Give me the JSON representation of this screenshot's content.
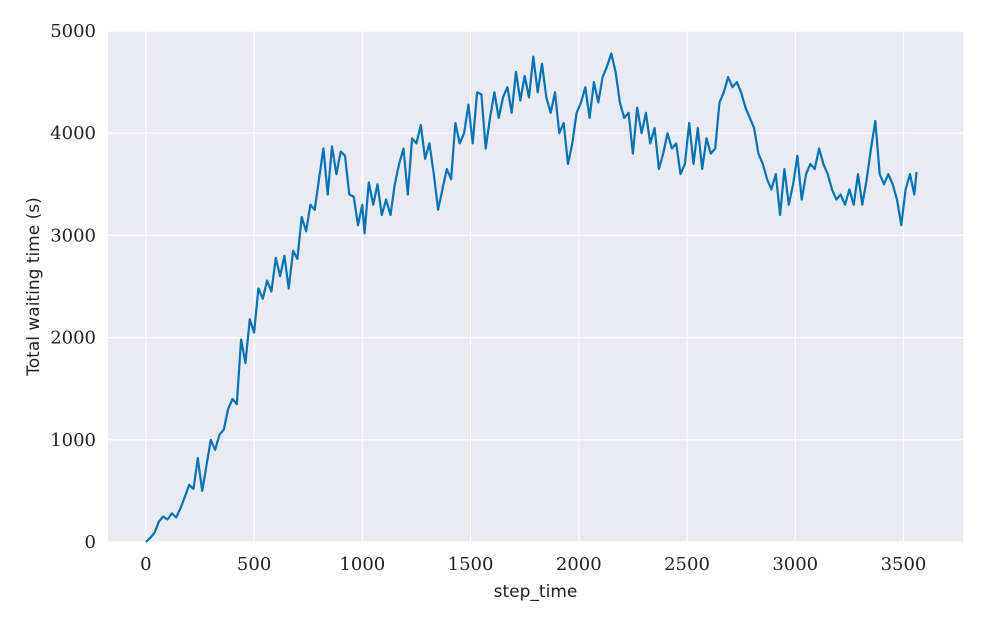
{
  "chart_data": {
    "type": "line",
    "title": "",
    "xlabel": "step_time",
    "ylabel": "Total waiting time (s)",
    "xlim": [
      -175,
      3775
    ],
    "ylim": [
      0,
      5000
    ],
    "x_ticks": [
      0,
      500,
      1000,
      1500,
      2000,
      2500,
      3000,
      3500
    ],
    "y_ticks": [
      0,
      1000,
      2000,
      3000,
      4000,
      5000
    ],
    "x_tick_labels": [
      "0",
      "500",
      "1000",
      "1500",
      "2000",
      "2500",
      "3000",
      "3500"
    ],
    "y_tick_labels": [
      "0",
      "1000",
      "2000",
      "3000",
      "4000",
      "5000"
    ],
    "grid": true,
    "style": "seaborn-darkgrid",
    "colors": {
      "background": "#eaeaf2",
      "grid": "#ffffff",
      "series": "#0173b2"
    },
    "series": [
      {
        "points": [
          [
            0,
            0
          ],
          [
            20,
            40
          ],
          [
            40,
            90
          ],
          [
            60,
            200
          ],
          [
            80,
            250
          ],
          [
            100,
            220
          ],
          [
            120,
            280
          ],
          [
            140,
            240
          ],
          [
            160,
            330
          ],
          [
            180,
            440
          ],
          [
            200,
            560
          ],
          [
            220,
            520
          ],
          [
            240,
            820
          ],
          [
            260,
            500
          ],
          [
            280,
            750
          ],
          [
            300,
            1000
          ],
          [
            320,
            900
          ],
          [
            340,
            1050
          ],
          [
            360,
            1100
          ],
          [
            380,
            1300
          ],
          [
            400,
            1400
          ],
          [
            420,
            1350
          ],
          [
            440,
            1980
          ],
          [
            460,
            1750
          ],
          [
            480,
            2180
          ],
          [
            500,
            2050
          ],
          [
            520,
            2480
          ],
          [
            540,
            2380
          ],
          [
            560,
            2560
          ],
          [
            580,
            2450
          ],
          [
            600,
            2780
          ],
          [
            620,
            2600
          ],
          [
            640,
            2800
          ],
          [
            660,
            2480
          ],
          [
            680,
            2850
          ],
          [
            700,
            2770
          ],
          [
            720,
            3180
          ],
          [
            740,
            3040
          ],
          [
            760,
            3300
          ],
          [
            780,
            3250
          ],
          [
            800,
            3550
          ],
          [
            820,
            3850
          ],
          [
            840,
            3400
          ],
          [
            860,
            3870
          ],
          [
            880,
            3600
          ],
          [
            900,
            3820
          ],
          [
            920,
            3780
          ],
          [
            940,
            3400
          ],
          [
            960,
            3380
          ],
          [
            980,
            3100
          ],
          [
            1000,
            3300
          ],
          [
            1010,
            3020
          ],
          [
            1030,
            3520
          ],
          [
            1050,
            3300
          ],
          [
            1070,
            3500
          ],
          [
            1090,
            3200
          ],
          [
            1110,
            3350
          ],
          [
            1130,
            3200
          ],
          [
            1150,
            3500
          ],
          [
            1170,
            3700
          ],
          [
            1190,
            3850
          ],
          [
            1210,
            3400
          ],
          [
            1230,
            3950
          ],
          [
            1250,
            3900
          ],
          [
            1270,
            4080
          ],
          [
            1290,
            3750
          ],
          [
            1310,
            3900
          ],
          [
            1330,
            3600
          ],
          [
            1350,
            3250
          ],
          [
            1370,
            3450
          ],
          [
            1390,
            3650
          ],
          [
            1410,
            3550
          ],
          [
            1430,
            4100
          ],
          [
            1450,
            3900
          ],
          [
            1470,
            4000
          ],
          [
            1490,
            4280
          ],
          [
            1510,
            3900
          ],
          [
            1530,
            4400
          ],
          [
            1550,
            4380
          ],
          [
            1570,
            3850
          ],
          [
            1590,
            4150
          ],
          [
            1610,
            4400
          ],
          [
            1630,
            4150
          ],
          [
            1650,
            4350
          ],
          [
            1670,
            4450
          ],
          [
            1690,
            4200
          ],
          [
            1710,
            4600
          ],
          [
            1730,
            4320
          ],
          [
            1750,
            4560
          ],
          [
            1770,
            4350
          ],
          [
            1790,
            4750
          ],
          [
            1810,
            4400
          ],
          [
            1830,
            4680
          ],
          [
            1850,
            4350
          ],
          [
            1870,
            4200
          ],
          [
            1890,
            4400
          ],
          [
            1910,
            4000
          ],
          [
            1930,
            4100
          ],
          [
            1950,
            3700
          ],
          [
            1970,
            3900
          ],
          [
            1990,
            4200
          ],
          [
            2010,
            4300
          ],
          [
            2030,
            4450
          ],
          [
            2050,
            4150
          ],
          [
            2070,
            4500
          ],
          [
            2090,
            4300
          ],
          [
            2110,
            4550
          ],
          [
            2130,
            4650
          ],
          [
            2150,
            4780
          ],
          [
            2170,
            4600
          ],
          [
            2190,
            4300
          ],
          [
            2210,
            4150
          ],
          [
            2230,
            4200
          ],
          [
            2250,
            3800
          ],
          [
            2270,
            4250
          ],
          [
            2290,
            4000
          ],
          [
            2310,
            4200
          ],
          [
            2330,
            3900
          ],
          [
            2350,
            4050
          ],
          [
            2370,
            3650
          ],
          [
            2390,
            3800
          ],
          [
            2410,
            4000
          ],
          [
            2430,
            3850
          ],
          [
            2450,
            3900
          ],
          [
            2470,
            3600
          ],
          [
            2490,
            3700
          ],
          [
            2510,
            4100
          ],
          [
            2530,
            3700
          ],
          [
            2550,
            4050
          ],
          [
            2570,
            3650
          ],
          [
            2590,
            3950
          ],
          [
            2610,
            3800
          ],
          [
            2630,
            3850
          ],
          [
            2650,
            4300
          ],
          [
            2670,
            4400
          ],
          [
            2690,
            4550
          ],
          [
            2710,
            4450
          ],
          [
            2730,
            4500
          ],
          [
            2750,
            4400
          ],
          [
            2770,
            4250
          ],
          [
            2790,
            4150
          ],
          [
            2810,
            4050
          ],
          [
            2830,
            3800
          ],
          [
            2850,
            3700
          ],
          [
            2870,
            3550
          ],
          [
            2890,
            3450
          ],
          [
            2910,
            3600
          ],
          [
            2930,
            3200
          ],
          [
            2950,
            3650
          ],
          [
            2970,
            3300
          ],
          [
            2990,
            3500
          ],
          [
            3010,
            3780
          ],
          [
            3030,
            3350
          ],
          [
            3050,
            3600
          ],
          [
            3070,
            3700
          ],
          [
            3090,
            3650
          ],
          [
            3110,
            3850
          ],
          [
            3130,
            3700
          ],
          [
            3150,
            3600
          ],
          [
            3170,
            3450
          ],
          [
            3190,
            3350
          ],
          [
            3210,
            3400
          ],
          [
            3230,
            3300
          ],
          [
            3250,
            3450
          ],
          [
            3270,
            3300
          ],
          [
            3290,
            3600
          ],
          [
            3310,
            3300
          ],
          [
            3330,
            3550
          ],
          [
            3350,
            3850
          ],
          [
            3370,
            4120
          ],
          [
            3390,
            3600
          ],
          [
            3410,
            3500
          ],
          [
            3430,
            3600
          ],
          [
            3450,
            3500
          ],
          [
            3470,
            3350
          ],
          [
            3490,
            3100
          ],
          [
            3510,
            3450
          ],
          [
            3530,
            3600
          ],
          [
            3550,
            3400
          ],
          [
            3560,
            3620
          ]
        ]
      }
    ]
  }
}
